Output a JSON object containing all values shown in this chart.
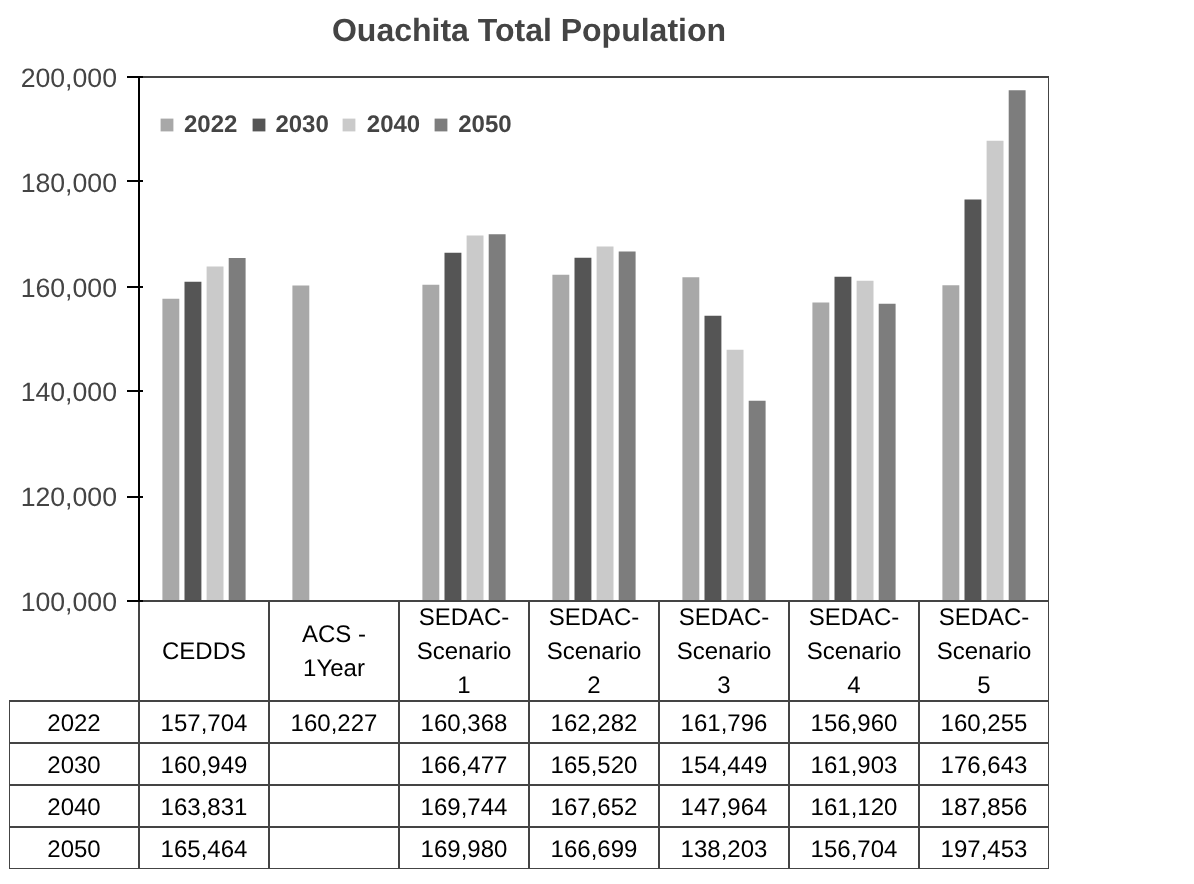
{
  "chart_data": {
    "type": "bar",
    "title": "Ouachita Total Population",
    "categories": [
      "CEDDS",
      "ACS - 1Year",
      "SEDAC-Scenario 1",
      "SEDAC-Scenario 2",
      "SEDAC-Scenario 3",
      "SEDAC-Scenario 4",
      "SEDAC-Scenario 5"
    ],
    "series": [
      {
        "name": "2022",
        "color": "#a8a8a8",
        "values": [
          157704,
          160227,
          160368,
          162282,
          161796,
          156960,
          160255
        ],
        "value_labels": [
          "157,704",
          "160,227",
          "160,368",
          "162,282",
          "161,796",
          "156,960",
          "160,255"
        ]
      },
      {
        "name": "2030",
        "color": "#555555",
        "values": [
          160949,
          null,
          166477,
          165520,
          154449,
          161903,
          176643
        ],
        "value_labels": [
          "160,949",
          null,
          "166,477",
          "165,520",
          "154,449",
          "161,903",
          "176,643"
        ]
      },
      {
        "name": "2040",
        "color": "#cacaca",
        "values": [
          163831,
          null,
          169744,
          167652,
          147964,
          161120,
          187856
        ],
        "value_labels": [
          "163,831",
          null,
          "169,744",
          "167,652",
          "147,964",
          "161,120",
          "187,856"
        ]
      },
      {
        "name": "2050",
        "color": "#7d7d7d",
        "values": [
          165464,
          null,
          169980,
          166699,
          138203,
          156704,
          197453
        ],
        "value_labels": [
          "165,464",
          null,
          "169,980",
          "166,699",
          "138,203",
          "156,704",
          "197,453"
        ]
      }
    ],
    "ylim": [
      100000,
      200000
    ],
    "yticks": [
      {
        "value": 100000,
        "label": "100,000"
      },
      {
        "value": 120000,
        "label": "120,000"
      },
      {
        "value": 140000,
        "label": "140,000"
      },
      {
        "value": 160000,
        "label": "160,000"
      },
      {
        "value": 180000,
        "label": "180,000"
      },
      {
        "value": 200000,
        "label": "200,000"
      }
    ],
    "grid": false,
    "legend": "top left"
  }
}
